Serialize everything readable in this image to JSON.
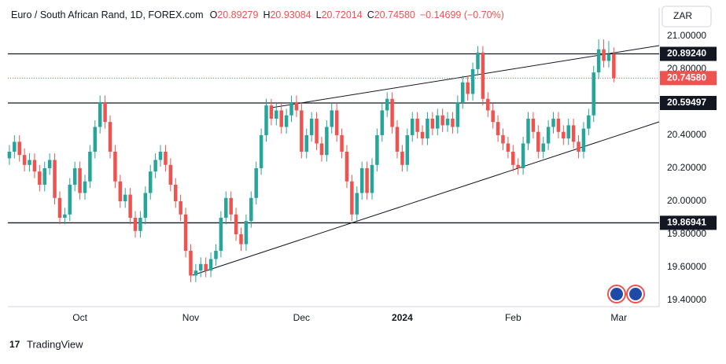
{
  "header": {
    "title": "Euro / South African Rand, 1D, FOREX.com",
    "ohlc": [
      {
        "label": "O",
        "value": "20.89279"
      },
      {
        "label": "H",
        "value": "20.93084"
      },
      {
        "label": "L",
        "value": "20.72014"
      },
      {
        "label": "C",
        "value": "20.74580"
      }
    ],
    "change": "−0.14699 (−0.70%)",
    "currency": "ZAR"
  },
  "brand": "TradingView",
  "chart_data": {
    "type": "candlestick",
    "up_color": "#26a69a",
    "down_color": "#ef5350",
    "open": [
      20.26,
      20.3,
      20.36,
      20.28,
      20.22,
      20.25,
      20.18,
      20.1,
      20.2,
      20.25,
      20.02,
      19.9,
      19.92,
      20.1,
      20.2,
      20.05,
      20.12,
      20.3,
      20.45,
      20.6,
      20.48,
      20.3,
      20.12,
      20.0,
      20.04,
      19.9,
      19.82,
      19.9,
      20.05,
      20.18,
      20.25,
      20.3,
      20.22,
      20.1,
      20.0,
      19.92,
      19.7,
      19.55,
      19.58,
      19.62,
      19.58,
      19.65,
      19.7,
      19.9,
      20.02,
      19.92,
      19.8,
      19.74,
      19.88,
      20.02,
      20.2,
      20.4,
      20.58,
      20.5,
      20.55,
      20.45,
      20.52,
      20.6,
      20.55,
      20.3,
      20.4,
      20.5,
      20.35,
      20.28,
      20.45,
      20.55,
      20.4,
      20.3,
      20.12,
      19.92,
      20.05,
      20.2,
      20.05,
      20.22,
      20.4,
      20.55,
      20.62,
      20.45,
      20.3,
      20.22,
      20.4,
      20.5,
      20.42,
      20.38,
      20.5,
      20.44,
      20.52,
      20.46,
      20.5,
      20.45,
      20.6,
      20.72,
      20.65,
      20.8,
      20.9,
      20.62,
      20.55,
      20.48,
      20.4,
      20.35,
      20.3,
      20.22,
      20.2,
      20.35,
      20.5,
      20.42,
      20.3,
      20.35,
      20.45,
      20.5,
      20.42,
      20.38,
      20.46,
      20.36,
      20.3,
      20.44,
      20.52,
      20.78,
      20.92,
      20.85,
      20.89279
    ],
    "high": [
      20.34,
      20.4,
      20.4,
      20.32,
      20.29,
      20.29,
      20.22,
      20.24,
      20.29,
      20.29,
      20.06,
      19.96,
      20.14,
      20.24,
      20.24,
      20.16,
      20.34,
      20.49,
      20.64,
      20.64,
      20.52,
      20.34,
      20.16,
      20.08,
      20.08,
      19.94,
      19.94,
      20.09,
      20.22,
      20.29,
      20.34,
      20.34,
      20.26,
      20.14,
      20.04,
      19.96,
      19.74,
      19.62,
      19.66,
      19.66,
      19.69,
      19.74,
      19.94,
      20.06,
      20.06,
      19.96,
      19.84,
      19.92,
      20.06,
      20.24,
      20.44,
      20.62,
      20.62,
      20.59,
      20.59,
      20.56,
      20.64,
      20.64,
      20.59,
      20.44,
      20.54,
      20.54,
      20.39,
      20.49,
      20.59,
      20.59,
      20.44,
      20.34,
      20.16,
      20.09,
      20.24,
      20.24,
      20.26,
      20.44,
      20.59,
      20.66,
      20.66,
      20.49,
      20.34,
      20.44,
      20.54,
      20.54,
      20.46,
      20.54,
      20.54,
      20.56,
      20.56,
      20.54,
      20.54,
      20.64,
      20.76,
      20.76,
      20.84,
      20.94,
      20.94,
      20.66,
      20.59,
      20.52,
      20.44,
      20.39,
      20.34,
      20.26,
      20.39,
      20.54,
      20.54,
      20.46,
      20.39,
      20.49,
      20.54,
      20.54,
      20.46,
      20.5,
      20.5,
      20.4,
      20.48,
      20.56,
      20.82,
      20.98,
      20.98,
      20.97,
      20.93084
    ],
    "low": [
      20.22,
      20.26,
      20.24,
      20.18,
      20.18,
      20.14,
      20.06,
      20.06,
      20.16,
      19.98,
      19.86,
      19.86,
      19.88,
      20.06,
      20.01,
      20.01,
      20.08,
      20.26,
      20.41,
      20.44,
      20.26,
      20.08,
      19.96,
      19.96,
      19.86,
      19.78,
      19.78,
      19.86,
      20.01,
      20.14,
      20.21,
      20.18,
      20.06,
      19.96,
      19.88,
      19.66,
      19.51,
      19.51,
      19.54,
      19.54,
      19.54,
      19.61,
      19.66,
      19.86,
      19.88,
      19.76,
      19.7,
      19.7,
      19.84,
      19.98,
      20.16,
      20.36,
      20.46,
      20.46,
      20.41,
      20.41,
      20.48,
      20.51,
      20.26,
      20.26,
      20.36,
      20.31,
      20.24,
      20.24,
      20.41,
      20.36,
      20.26,
      20.08,
      19.88,
      19.88,
      20.01,
      20.01,
      20.01,
      20.18,
      20.36,
      20.51,
      20.41,
      20.26,
      20.18,
      20.18,
      20.36,
      20.38,
      20.34,
      20.34,
      20.4,
      20.4,
      20.42,
      20.42,
      20.41,
      20.41,
      20.56,
      20.61,
      20.61,
      20.76,
      20.58,
      20.51,
      20.44,
      20.36,
      20.31,
      20.26,
      20.18,
      20.16,
      20.16,
      20.31,
      20.38,
      20.26,
      20.26,
      20.31,
      20.41,
      20.38,
      20.34,
      20.34,
      20.32,
      20.26,
      20.26,
      20.4,
      20.48,
      20.74,
      20.81,
      20.81,
      20.72014
    ],
    "close": [
      20.3,
      20.36,
      20.28,
      20.22,
      20.25,
      20.18,
      20.1,
      20.2,
      20.25,
      20.02,
      19.9,
      19.92,
      20.1,
      20.2,
      20.05,
      20.12,
      20.3,
      20.45,
      20.6,
      20.48,
      20.3,
      20.12,
      20.0,
      20.04,
      19.9,
      19.82,
      19.9,
      20.05,
      20.18,
      20.25,
      20.3,
      20.22,
      20.1,
      20.0,
      19.92,
      19.7,
      19.55,
      19.58,
      19.62,
      19.58,
      19.65,
      19.7,
      19.9,
      20.02,
      19.92,
      19.8,
      19.74,
      19.88,
      20.02,
      20.2,
      20.4,
      20.58,
      20.5,
      20.55,
      20.45,
      20.52,
      20.6,
      20.55,
      20.3,
      20.4,
      20.5,
      20.35,
      20.28,
      20.45,
      20.55,
      20.4,
      20.3,
      20.12,
      19.92,
      20.05,
      20.2,
      20.05,
      20.22,
      20.4,
      20.55,
      20.62,
      20.45,
      20.3,
      20.22,
      20.4,
      20.5,
      20.42,
      20.38,
      20.5,
      20.44,
      20.52,
      20.46,
      20.5,
      20.45,
      20.6,
      20.72,
      20.65,
      20.8,
      20.9,
      20.62,
      20.55,
      20.48,
      20.4,
      20.35,
      20.3,
      20.22,
      20.2,
      20.35,
      20.5,
      20.42,
      20.3,
      20.35,
      20.45,
      20.5,
      20.42,
      20.38,
      20.46,
      20.36,
      20.3,
      20.44,
      20.52,
      20.78,
      20.92,
      20.85,
      20.89,
      20.7458
    ],
    "xlim": [
      -0.3,
      129
    ],
    "ylim": [
      19.362,
      21.171
    ],
    "xticks": [
      {
        "value": 14,
        "label": "Oct"
      },
      {
        "value": 36,
        "label": "Nov"
      },
      {
        "value": 58,
        "label": "Dec"
      },
      {
        "value": 78,
        "label": "2024"
      },
      {
        "value": 100,
        "label": "Feb"
      },
      {
        "value": 121,
        "label": "Mar"
      }
    ],
    "yticks": [
      {
        "value": 21,
        "label": "21.00000"
      },
      {
        "value": 20.8,
        "label": "20.80000"
      },
      {
        "value": 20.4,
        "label": "20.40000"
      },
      {
        "value": 20.2,
        "label": "20.20000"
      },
      {
        "value": 20,
        "label": "20.00000"
      },
      {
        "value": 19.8,
        "label": "19.80000"
      },
      {
        "value": 19.6,
        "label": "19.60000"
      },
      {
        "value": 19.4,
        "label": "19.40000"
      }
    ],
    "levels": [
      {
        "value": 20.8924,
        "label": "20.89240"
      },
      {
        "value": 20.59497,
        "label": "20.59497"
      },
      {
        "value": 19.86941,
        "label": "19.86941"
      }
    ],
    "last_price": {
      "value": 20.7458,
      "label": "20.74580",
      "color": "#ef5350"
    }
  }
}
